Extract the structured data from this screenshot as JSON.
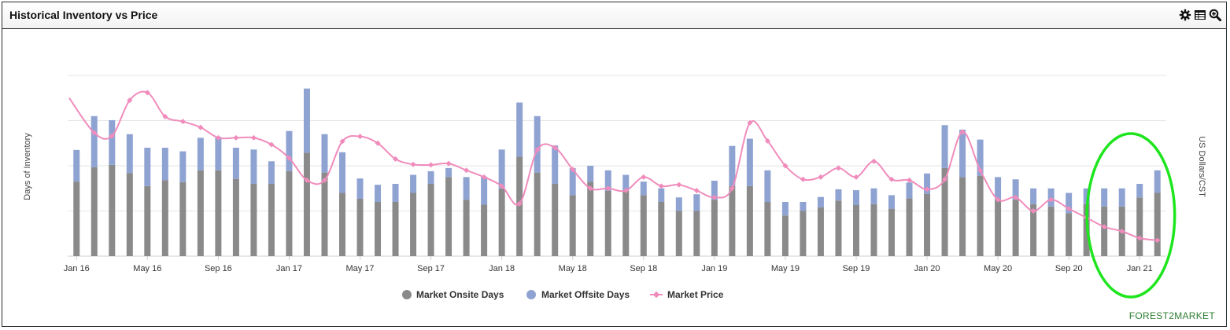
{
  "panel": {
    "title": "Historical Inventory vs Price",
    "tools": [
      "settings-icon",
      "table-icon",
      "zoom-icon"
    ]
  },
  "brand": {
    "text": "FOREST2MARKET"
  },
  "colors": {
    "onsite": "#8a8a8a",
    "offsite": "#8fa3d3",
    "price": "#f08cbc",
    "highlight": "#1ee51e",
    "grid": "#e6e6e6"
  },
  "chart_data": {
    "type": "bar+line",
    "title": "Historical Inventory vs Price",
    "ylabel_left": "Days of Inventory",
    "ylabel_right": "US Dollars/CST",
    "y_left_range": [
      0,
      40
    ],
    "y_right_range": [
      0,
      40
    ],
    "gridlines": [
      10,
      20,
      30,
      40
    ],
    "x_tick_labels": [
      "Jan 16",
      "May 16",
      "Sep 16",
      "Jan 17",
      "May 17",
      "Sep 17",
      "Jan 18",
      "May 18",
      "Sep 18",
      "Jan 19",
      "May 19",
      "Sep 19",
      "Jan 20",
      "May 20",
      "Sep 20",
      "Jan 21"
    ],
    "x_tick_months": [
      0,
      4,
      8,
      12,
      16,
      20,
      24,
      28,
      32,
      36,
      40,
      44,
      48,
      52,
      56,
      60
    ],
    "months": 62,
    "series": [
      {
        "name": "Market Onsite Days",
        "kind": "stacked-bar",
        "values": [
          16.5,
          19.7,
          20.2,
          18.4,
          15.5,
          16.8,
          16.4,
          19.0,
          19.0,
          17.1,
          16.0,
          16.0,
          18.8,
          22.9,
          18.5,
          14.0,
          12.7,
          12.0,
          12.0,
          14.0,
          16.0,
          17.5,
          12.5,
          11.4,
          15.0,
          22.0,
          18.5,
          16.0,
          13.5,
          16.5,
          14.5,
          14.5,
          13.5,
          12.0,
          10.0,
          10.0,
          12.5,
          15.5,
          15.5,
          12.0,
          9.0,
          10.0,
          10.8,
          12.3,
          11.3,
          11.5,
          10.5,
          12.8,
          13.8,
          19.5,
          17.5,
          17.8,
          12.5,
          12.5,
          11.5,
          11.0,
          9.5,
          11.5,
          11.0,
          11.0,
          13.0,
          14.0
        ]
      },
      {
        "name": "Market Offsite Days",
        "kind": "stacked-bar",
        "values": [
          7.0,
          11.3,
          9.9,
          8.6,
          8.5,
          7.2,
          6.8,
          7.2,
          7.4,
          6.9,
          7.6,
          5.0,
          8.9,
          14.2,
          8.5,
          9.0,
          4.5,
          3.8,
          4.0,
          4.0,
          2.8,
          2.0,
          5.0,
          6.2,
          8.6,
          12.0,
          12.5,
          8.5,
          6.0,
          3.5,
          4.5,
          3.5,
          3.0,
          3.0,
          3.0,
          3.7,
          4.2,
          8.9,
          10.5,
          7.0,
          3.0,
          2.0,
          2.3,
          2.5,
          3.3,
          3.5,
          3.0,
          3.5,
          4.5,
          9.5,
          10.5,
          8.0,
          5.0,
          4.5,
          3.5,
          4.0,
          4.5,
          3.5,
          4.0,
          4.0,
          3.0,
          5.0
        ]
      },
      {
        "name": "Market Price",
        "kind": "line",
        "values": [
          35.0,
          27.3,
          26.6,
          34.5,
          36.2,
          30.9,
          29.8,
          28.5,
          26.2,
          26.2,
          26.2,
          24.7,
          21.7,
          16.8,
          16.8,
          25.4,
          26.5,
          25.0,
          21.5,
          20.3,
          20.2,
          20.5,
          19.0,
          17.5,
          15.5,
          11.6,
          23.5,
          24.0,
          19.2,
          15.0,
          15.0,
          14.5,
          17.5,
          15.5,
          15.8,
          14.5,
          13.0,
          15.0,
          29.5,
          25.5,
          20.0,
          17.0,
          17.5,
          19.5,
          17.5,
          21.0,
          17.0,
          16.8,
          14.8,
          17.0,
          27.5,
          19.0,
          12.5,
          13.0,
          10.0,
          12.5,
          10.5,
          8.5,
          6.5,
          5.5,
          4.0,
          3.5
        ]
      }
    ],
    "highlight": {
      "shape": "ellipse",
      "around": "Jan 21",
      "months": [
        58,
        61
      ]
    }
  }
}
